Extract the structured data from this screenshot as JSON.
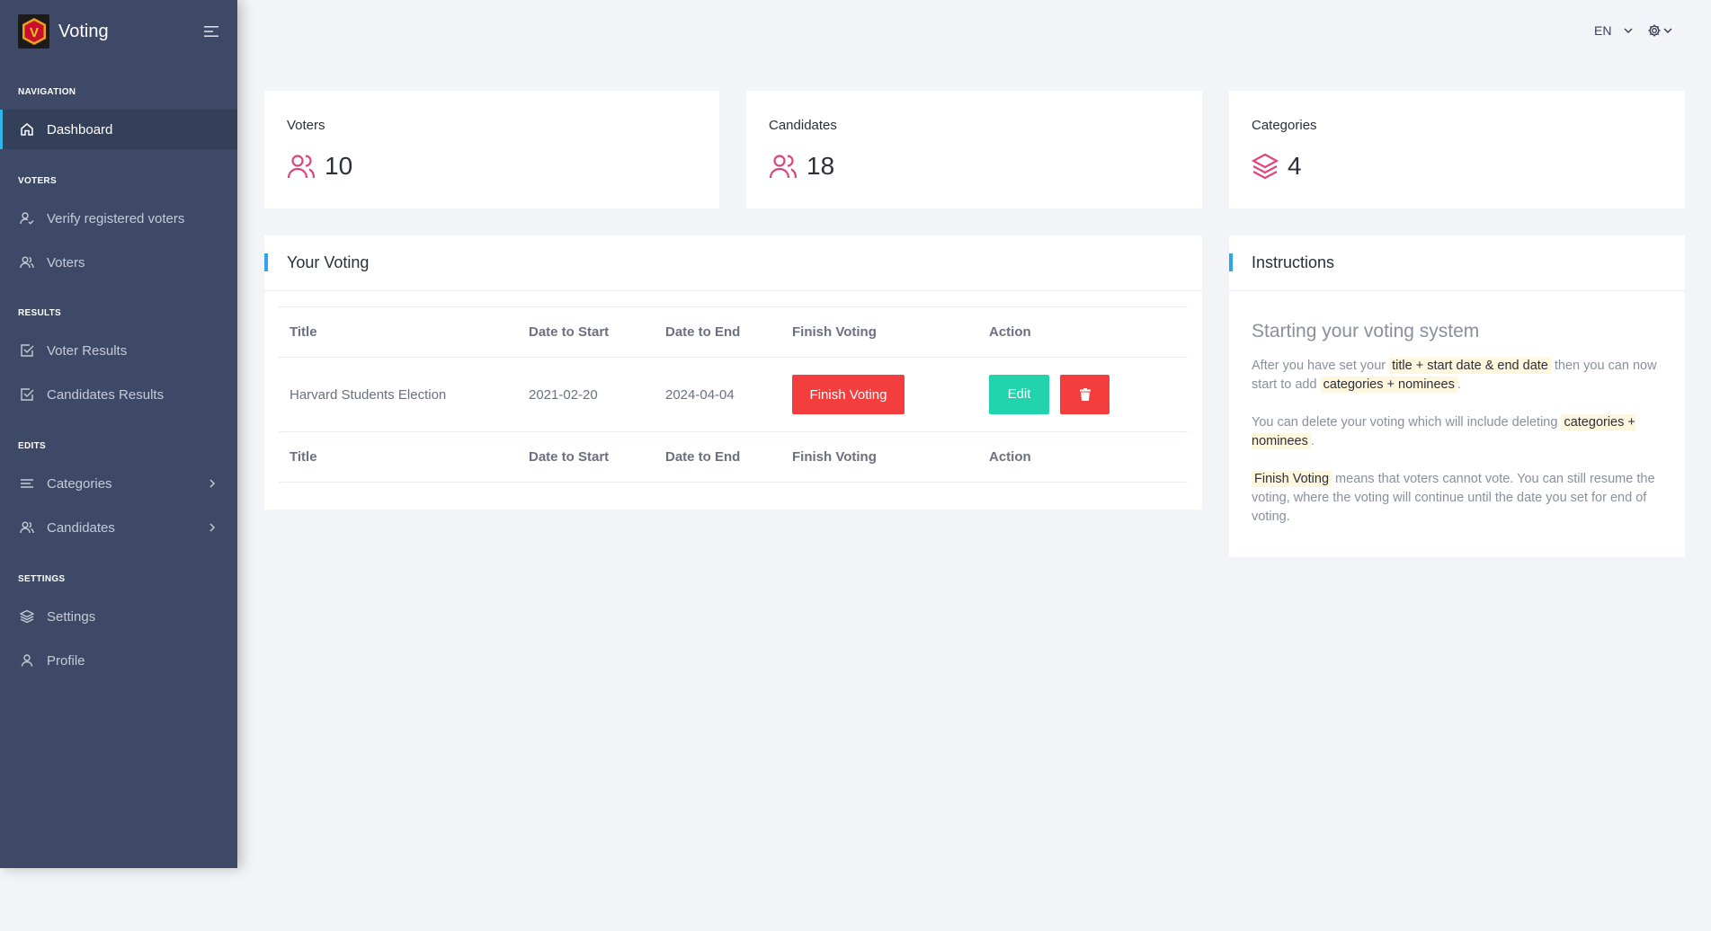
{
  "app": {
    "title": "Voting",
    "logo_letter": "V"
  },
  "sidebar": {
    "sections": {
      "navigation": "NAVIGATION",
      "voters": "VOTERS",
      "results": "RESULTS",
      "edits": "EDITS",
      "settings": "SETTINGS"
    },
    "items": {
      "dashboard": "Dashboard",
      "verify": "Verify registered voters",
      "voters": "Voters",
      "voter_results": "Voter Results",
      "candidates_results": "Candidates Results",
      "categories": "Categories",
      "candidates": "Candidates",
      "settings": "Settings",
      "profile": "Profile"
    }
  },
  "topbar": {
    "language": "EN"
  },
  "stats": {
    "voters": {
      "label": "Voters",
      "value": "10"
    },
    "candidates": {
      "label": "Candidates",
      "value": "18"
    },
    "categories": {
      "label": "Categories",
      "value": "4"
    }
  },
  "voting": {
    "title": "Your Voting",
    "columns": [
      "Title",
      "Date to Start",
      "Date to End",
      "Finish Voting",
      "Action"
    ],
    "rows": [
      {
        "title": "Harvard Students Election",
        "start": "2021-02-20",
        "end": "2024-04-04",
        "finish_label": "Finish Voting",
        "edit_label": "Edit"
      }
    ]
  },
  "instructions": {
    "title": "Instructions",
    "heading": "Starting your voting system",
    "p1_a": "After you have set your ",
    "p1_mark1": "title + start date & end date",
    "p1_b": " then you can now start to add ",
    "p1_mark2": "categories + nominees",
    "p1_c": ".",
    "p2_a": "You can delete your voting which will include deleting ",
    "p2_mark": "categories + nominees",
    "p2_b": ".",
    "p3_mark": "Finish Voting",
    "p3_a": " means that voters cannot vote. You can still resume the voting, where the voting will continue until the date you set for end of voting."
  },
  "colors": {
    "sidebar": "#3d4966",
    "accent": "#30b5e8",
    "danger": "#f43e3e",
    "success": "#22d4ad",
    "icon_pink": "#e0427a"
  }
}
